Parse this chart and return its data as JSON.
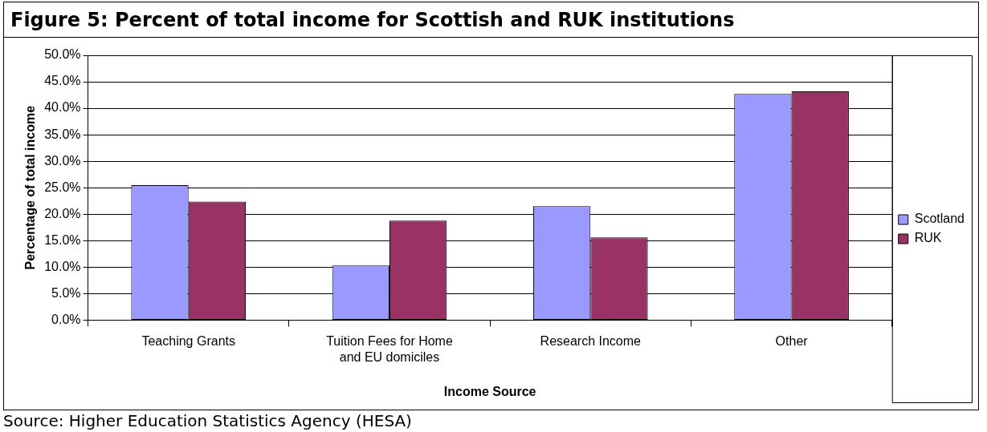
{
  "chart_data": {
    "type": "bar",
    "title": "Figure 5: Percent of total income for Scottish and RUK institutions",
    "xlabel": "Income Source",
    "ylabel": "Percentage of total income",
    "categories": [
      "Teaching Grants",
      "Tuition Fees for Home and EU domiciles",
      "Research Income",
      "Other"
    ],
    "series": [
      {
        "name": "Scotland",
        "color": "#9999ff",
        "values": [
          25.5,
          10.3,
          21.5,
          42.7
        ]
      },
      {
        "name": "RUK",
        "color": "#993366",
        "values": [
          22.4,
          18.8,
          15.6,
          43.2
        ]
      }
    ],
    "ylim": [
      0,
      50
    ],
    "yticks": [
      {
        "value": 0,
        "label": "0.0%"
      },
      {
        "value": 5,
        "label": "5.0%"
      },
      {
        "value": 10,
        "label": "10.0%"
      },
      {
        "value": 15,
        "label": "15.0%"
      },
      {
        "value": 20,
        "label": "20.0%"
      },
      {
        "value": 25,
        "label": "25.0%"
      },
      {
        "value": 30,
        "label": "30.0%"
      },
      {
        "value": 35,
        "label": "35.0%"
      },
      {
        "value": 40,
        "label": "40.0%"
      },
      {
        "value": 45,
        "label": "45.0%"
      },
      {
        "value": 50,
        "label": "50.0%"
      }
    ],
    "grid": "y",
    "legend": "right",
    "annotations": [
      "Source: Higher Education Statistics Agency (HESA)"
    ]
  }
}
